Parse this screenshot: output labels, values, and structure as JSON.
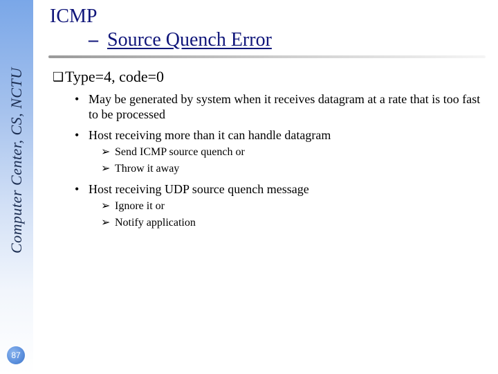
{
  "sidebar": {
    "label": "Computer Center, CS, NCTU",
    "text_color": "#1c2e52",
    "gradient_top": "#7aa7e8",
    "gradient_bottom": "#ffffff",
    "font_style": "italic",
    "font_size_pt": 17
  },
  "page_number": "87",
  "badge": {
    "bg": "#5a8edc",
    "fg": "#ffffff"
  },
  "title": {
    "line1": "ICMP",
    "dash": "–",
    "line2": "Source Quench Error",
    "color": "#10167a",
    "font_size_pt": 21,
    "underline": true
  },
  "divider": {
    "color_left": "#9a9a9a",
    "color_right": "#f5f5f5"
  },
  "bullets": {
    "lvl1_marker": "❑",
    "lvl2_marker": "•",
    "lvl3_marker": "➢",
    "items": [
      {
        "text": "Type=4, code=0",
        "children": [
          {
            "text": "May be generated by system when it receives datagram at a rate that is too fast to be processed"
          },
          {
            "text": "Host receiving more than it can handle datagram",
            "children": [
              {
                "text": "Send ICMP source quench or"
              },
              {
                "text": "Throw it away"
              }
            ]
          },
          {
            "text": "Host receiving UDP source quench message",
            "children": [
              {
                "text": "Ignore it or"
              },
              {
                "text": "Notify application"
              }
            ]
          }
        ]
      }
    ]
  },
  "colors": {
    "text": "#000000",
    "background": "#ffffff"
  },
  "fonts": {
    "body": "Times New Roman",
    "lvl1_size_pt": 17,
    "lvl2_size_pt": 14,
    "lvl3_size_pt": 12
  }
}
